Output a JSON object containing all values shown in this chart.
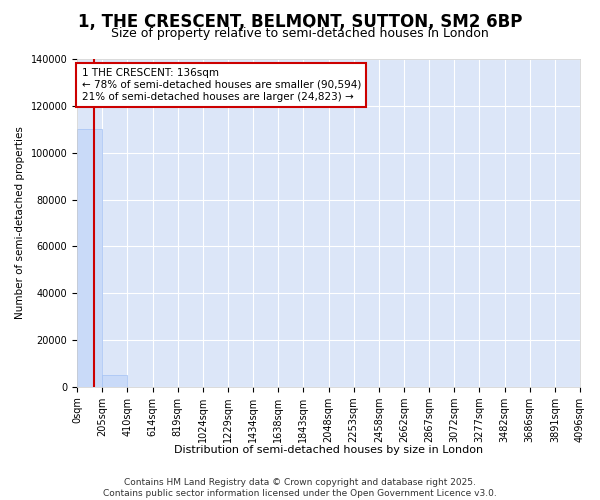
{
  "title": "1, THE CRESCENT, BELMONT, SUTTON, SM2 6BP",
  "subtitle": "Size of property relative to semi-detached houses in London",
  "xlabel": "Distribution of semi-detached houses by size in London",
  "ylabel": "Number of semi-detached properties",
  "property_size_sqm": 136,
  "annotation_line1": "1 THE CRESCENT: 136sqm",
  "annotation_line2": "← 78% of semi-detached houses are smaller (90,594)",
  "annotation_line3": "21% of semi-detached houses are larger (24,823) →",
  "bin_labels": [
    "0sqm",
    "205sqm",
    "410sqm",
    "614sqm",
    "819sqm",
    "1024sqm",
    "1229sqm",
    "1434sqm",
    "1638sqm",
    "1843sqm",
    "2048sqm",
    "2253sqm",
    "2458sqm",
    "2662sqm",
    "2867sqm",
    "3072sqm",
    "3277sqm",
    "3482sqm",
    "3686sqm",
    "3891sqm",
    "4096sqm"
  ],
  "bar_heights": [
    110000,
    5000,
    150,
    20,
    5,
    2,
    1,
    0,
    0,
    0,
    0,
    0,
    0,
    0,
    0,
    0,
    0,
    0,
    0,
    0
  ],
  "bar_color": "#c9daf8",
  "bar_edge_color": "#a4c2f4",
  "vline_color": "#cc0000",
  "annotation_box_edgecolor": "#cc0000",
  "background_color": "#dce6f8",
  "grid_color": "#ffffff",
  "ylim": [
    0,
    140000
  ],
  "yticks": [
    0,
    20000,
    40000,
    60000,
    80000,
    100000,
    120000,
    140000
  ],
  "title_fontsize": 12,
  "subtitle_fontsize": 9,
  "ylabel_fontsize": 7.5,
  "xlabel_fontsize": 8,
  "tick_fontsize": 7,
  "annotation_fontsize": 7.5,
  "footer_fontsize": 6.5,
  "footer": "Contains HM Land Registry data © Crown copyright and database right 2025.\nContains public sector information licensed under the Open Government Licence v3.0."
}
